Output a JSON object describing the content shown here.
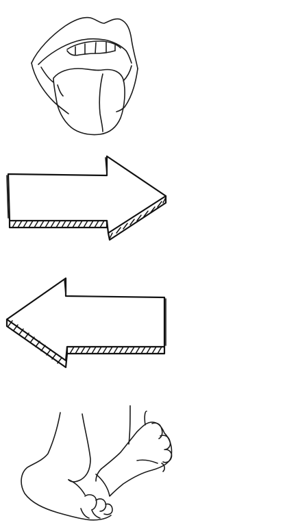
{
  "page": {
    "background": "#ffffff",
    "ink_color": "#1a1a1a"
  },
  "illustrations": [
    {
      "id": "mouth",
      "icon": "mouth-tongue-icon"
    },
    {
      "id": "arrow-right",
      "icon": "arrow-right-icon"
    },
    {
      "id": "arrow-left",
      "icon": "arrow-left-icon"
    },
    {
      "id": "feet",
      "icon": "feet-icon"
    }
  ]
}
